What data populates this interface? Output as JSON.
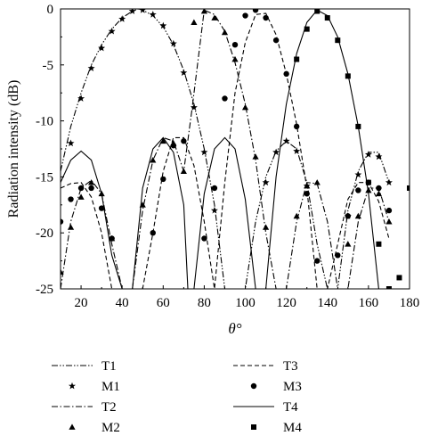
{
  "chart_data": {
    "type": "line",
    "xlabel": "θ°",
    "ylabel": "Radiation intensity (dB)",
    "xlim": [
      10,
      180
    ],
    "ylim": [
      -25,
      0
    ],
    "x_ticks": [
      20,
      40,
      60,
      80,
      100,
      120,
      140,
      160,
      180
    ],
    "y_ticks": [
      0,
      -5,
      -10,
      -15,
      -20,
      -25
    ],
    "grid": false,
    "legend_position": "below",
    "series": [
      {
        "name": "T1",
        "kind": "line",
        "dash": "dash-dot-dot",
        "x": [
          10,
          15,
          20,
          25,
          30,
          35,
          40,
          45,
          48,
          50,
          55,
          60,
          65,
          70,
          75,
          80,
          85,
          90,
          95,
          100,
          105,
          110,
          115,
          120,
          125,
          130,
          135,
          140,
          145,
          150,
          155,
          160,
          165,
          170
        ],
        "y": [
          -14.5,
          -10.5,
          -7.5,
          -5,
          -3.2,
          -1.8,
          -0.8,
          -0.2,
          0,
          -0.1,
          -0.6,
          -1.6,
          -3.2,
          -5.5,
          -8.5,
          -12.5,
          -17.5,
          -25,
          -25,
          -25,
          -19,
          -15,
          -12.7,
          -11.8,
          -12.5,
          -15.5,
          -21,
          -25,
          -25,
          -18,
          -14.5,
          -12.8,
          -12.8,
          -15.5
        ]
      },
      {
        "name": "M1",
        "kind": "marker",
        "marker": "star",
        "x": [
          15,
          20,
          25,
          30,
          35,
          40,
          45,
          50,
          55,
          60,
          65,
          70,
          75,
          80,
          85,
          110,
          115,
          120,
          125,
          130,
          150,
          155,
          160,
          165,
          170
        ],
        "y": [
          -12,
          -8,
          -5.3,
          -3.5,
          -2,
          -0.9,
          -0.2,
          -0.1,
          -0.5,
          -1.5,
          -3.1,
          -5.7,
          -8.8,
          -12.8,
          -18,
          -15.5,
          -12.8,
          -11.8,
          -12.7,
          -15.8,
          -18.5,
          -14.8,
          -13,
          -13.2,
          -15.5
        ]
      },
      {
        "name": "T2",
        "kind": "line",
        "dash": "dash-dot",
        "x": [
          10,
          15,
          20,
          25,
          30,
          35,
          40,
          45,
          50,
          55,
          60,
          65,
          70,
          74,
          80,
          85,
          90,
          95,
          100,
          105,
          110,
          115,
          120,
          125,
          130,
          135,
          140,
          145,
          150,
          155,
          160,
          165,
          170
        ],
        "y": [
          -25,
          -19,
          -16,
          -15.3,
          -16.5,
          -21,
          -25,
          -25,
          -18,
          -13.5,
          -11.5,
          -11.8,
          -14.5,
          -9,
          -0.1,
          -0.5,
          -2,
          -4.8,
          -8.5,
          -13.5,
          -20,
          -25,
          -25,
          -19,
          -15.5,
          -15.6,
          -19,
          -25,
          -25,
          -19,
          -16,
          -16,
          -19
        ]
      },
      {
        "name": "M2",
        "kind": "marker",
        "marker": "triangle",
        "x": [
          10,
          15,
          20,
          25,
          30,
          35,
          50,
          55,
          60,
          65,
          70,
          75,
          80,
          85,
          90,
          95,
          100,
          105,
          110,
          125,
          130,
          135,
          150,
          155,
          160,
          165,
          170
        ],
        "y": [
          -23.5,
          -19.5,
          -16.8,
          -15.5,
          -16.5,
          -20.5,
          -17.5,
          -13.5,
          -11.8,
          -12,
          -14.5,
          -1.2,
          -0.2,
          -0.8,
          -2.1,
          -4.5,
          -8.8,
          -13.2,
          -19.5,
          -18.5,
          -15.8,
          -15.5,
          -21,
          -18.5,
          -16.2,
          -16.5,
          -19
        ]
      },
      {
        "name": "T3",
        "kind": "line",
        "dash": "dashed",
        "x": [
          10,
          15,
          20,
          25,
          30,
          35,
          40,
          45,
          50,
          55,
          60,
          65,
          70,
          75,
          80,
          85,
          90,
          95,
          100,
          105,
          110,
          115,
          120,
          125,
          130,
          135,
          140,
          145,
          150,
          155,
          160,
          165,
          170
        ],
        "y": [
          -16,
          -15.6,
          -15.5,
          -16.8,
          -20,
          -25,
          -25,
          -25,
          -25,
          -20,
          -14.5,
          -11.5,
          -11.5,
          -14,
          -19,
          -25,
          -15.5,
          -7.5,
          -3,
          -0.5,
          -0.4,
          -2.3,
          -5.8,
          -10.3,
          -16,
          -25,
          -25,
          -21,
          -17,
          -15.5,
          -15.5,
          -17.2,
          -20.5
        ]
      },
      {
        "name": "M3",
        "kind": "marker",
        "marker": "circle",
        "x": [
          10,
          15,
          20,
          25,
          30,
          35,
          55,
          60,
          65,
          70,
          80,
          85,
          90,
          95,
          100,
          105,
          110,
          115,
          120,
          125,
          130,
          135,
          145,
          150,
          155,
          160,
          165,
          170
        ],
        "y": [
          -19,
          -17,
          -16,
          -16,
          -17.8,
          -20.5,
          -20,
          -15.2,
          -12.2,
          -11.8,
          -20.5,
          -16,
          -8,
          -3.2,
          -0.6,
          -0.1,
          -0.8,
          -2.8,
          -5.8,
          -10.5,
          -16.5,
          -22.5,
          -22,
          -18.5,
          -16.2,
          -15.5,
          -16,
          -18
        ]
      },
      {
        "name": "T4",
        "kind": "line",
        "dash": "solid",
        "x": [
          10,
          15,
          20,
          25,
          30,
          35,
          40,
          45,
          50,
          55,
          60,
          65,
          70,
          72,
          75,
          80,
          85,
          90,
          95,
          100,
          105,
          110,
          115,
          120,
          125,
          130,
          135,
          140,
          145,
          150,
          155,
          160,
          165,
          170,
          175,
          180
        ],
        "y": [
          -15.5,
          -13.5,
          -12.7,
          -13.5,
          -16.5,
          -22,
          -25,
          -25,
          -16,
          -12.5,
          -11.5,
          -12.8,
          -17.5,
          -25,
          -25,
          -16.5,
          -12.5,
          -11.5,
          -12.5,
          -17,
          -25,
          -25,
          -15,
          -8.5,
          -4,
          -1.2,
          -0.1,
          -0.6,
          -2.5,
          -5.8,
          -10.5,
          -16.5,
          -25,
          -25,
          -25,
          -25
        ]
      },
      {
        "name": "M4",
        "kind": "marker",
        "marker": "square",
        "x": [
          125,
          130,
          135,
          140,
          145,
          150,
          155,
          160,
          165,
          170,
          175,
          180
        ],
        "y": [
          -4.5,
          -1.8,
          -0.2,
          -0.8,
          -2.8,
          -6,
          -10.5,
          -15.5,
          -21,
          -25,
          -24,
          -16
        ]
      }
    ]
  }
}
